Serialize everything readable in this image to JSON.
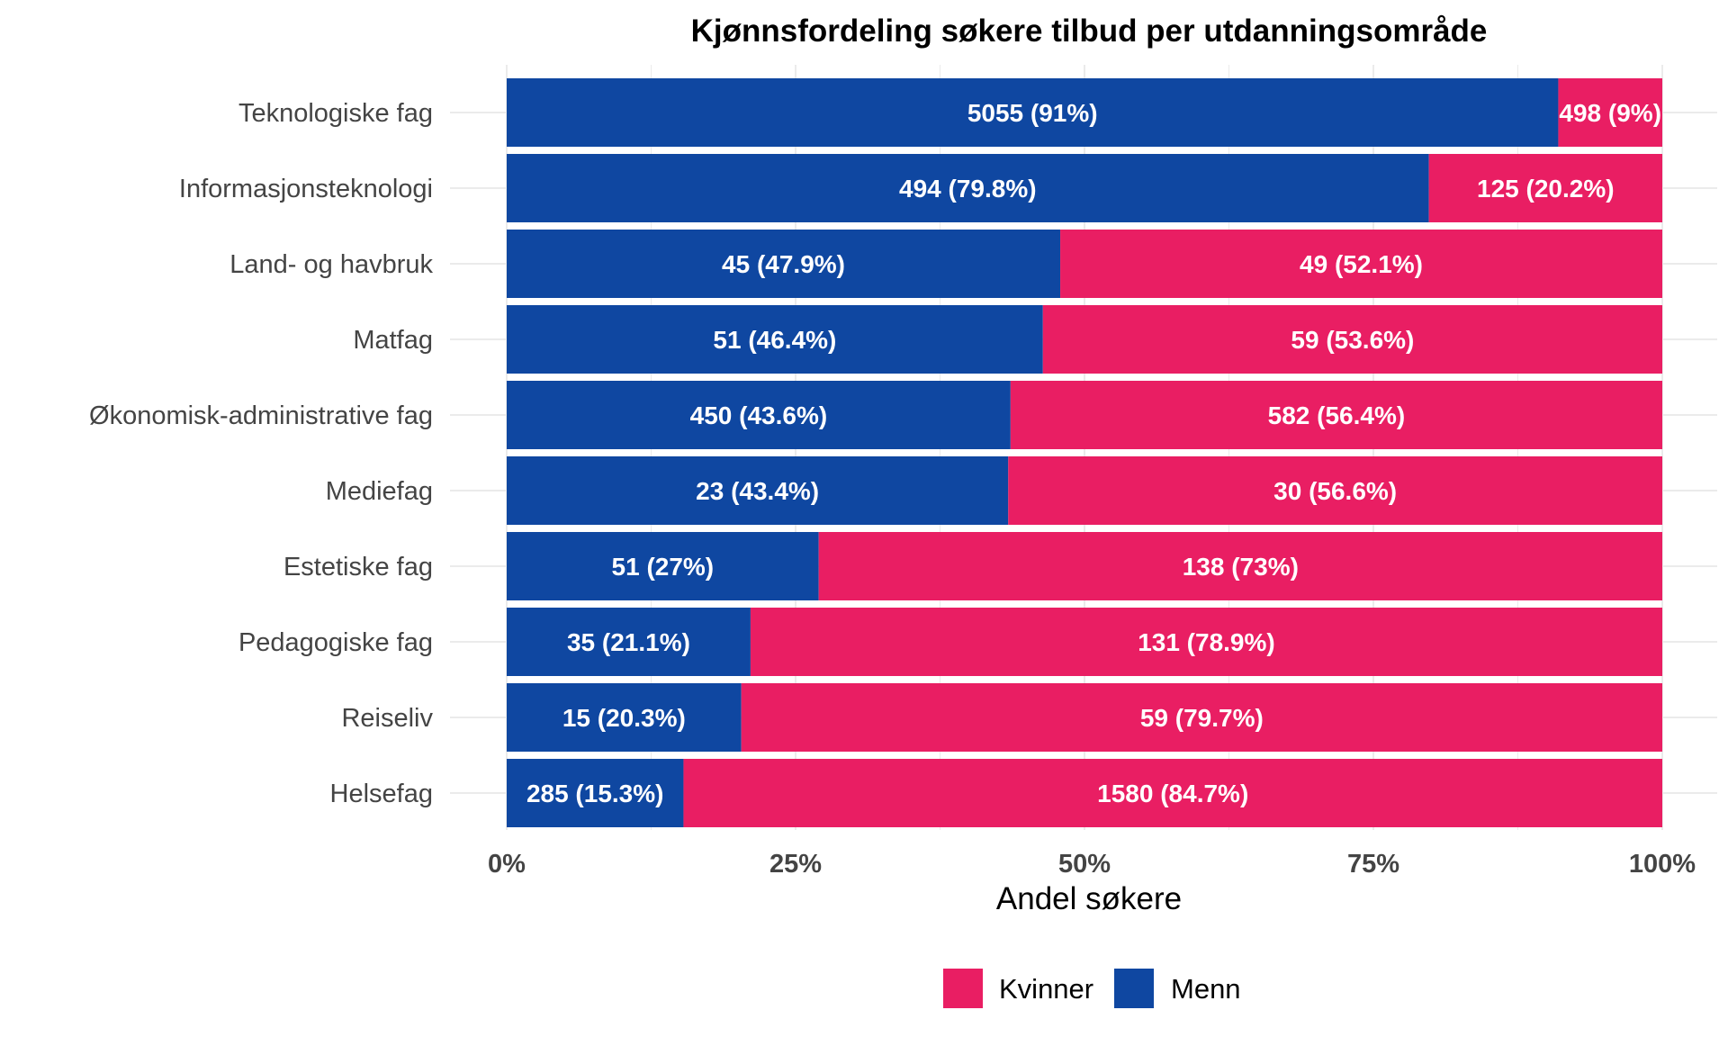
{
  "chart_data": {
    "type": "bar",
    "orientation": "horizontal",
    "stacked": "percent",
    "title": "Kjønnsfordeling søkere tilbud per utdanningsområde",
    "xlabel": "Andel søkere",
    "ylabel": "",
    "xlim": [
      0,
      1
    ],
    "x_ticks": [
      "0%",
      "25%",
      "50%",
      "75%",
      "100%"
    ],
    "grid": true,
    "legend_position": "bottom",
    "categories": [
      "Teknologiske fag",
      "Informasjonsteknologi",
      "Land- og havbruk",
      "Matfag",
      "Økonomisk-administrative fag",
      "Mediefag",
      "Estetiske fag",
      "Pedagogiske fag",
      "Reiseliv",
      "Helsefag"
    ],
    "series": [
      {
        "name": "Menn",
        "color": "#0f47a1",
        "values": [
          5055,
          494,
          45,
          51,
          450,
          23,
          51,
          35,
          15,
          285
        ],
        "shares": [
          0.91,
          0.798,
          0.479,
          0.464,
          0.436,
          0.434,
          0.27,
          0.211,
          0.203,
          0.153
        ],
        "labels": [
          "5055 (91%)",
          "494 (79.8%)",
          "45 (47.9%)",
          "51 (46.4%)",
          "450 (43.6%)",
          "23 (43.4%)",
          "51 (27%)",
          "35 (21.1%)",
          "15 (20.3%)",
          "285 (15.3%)"
        ]
      },
      {
        "name": "Kvinner",
        "color": "#e91e63",
        "values": [
          498,
          125,
          49,
          59,
          582,
          30,
          138,
          131,
          59,
          1580
        ],
        "shares": [
          0.09,
          0.202,
          0.521,
          0.536,
          0.564,
          0.566,
          0.73,
          0.789,
          0.797,
          0.847
        ],
        "labels": [
          "498 (9%)",
          "125 (20.2%)",
          "49 (52.1%)",
          "59 (53.6%)",
          "582 (56.4%)",
          "30 (56.6%)",
          "138 (73%)",
          "131 (78.9%)",
          "59 (79.7%)",
          "1580 (84.7%)"
        ]
      }
    ],
    "legend": [
      {
        "name": "Kvinner",
        "color": "#e91e63"
      },
      {
        "name": "Menn",
        "color": "#0f47a1"
      }
    ]
  }
}
